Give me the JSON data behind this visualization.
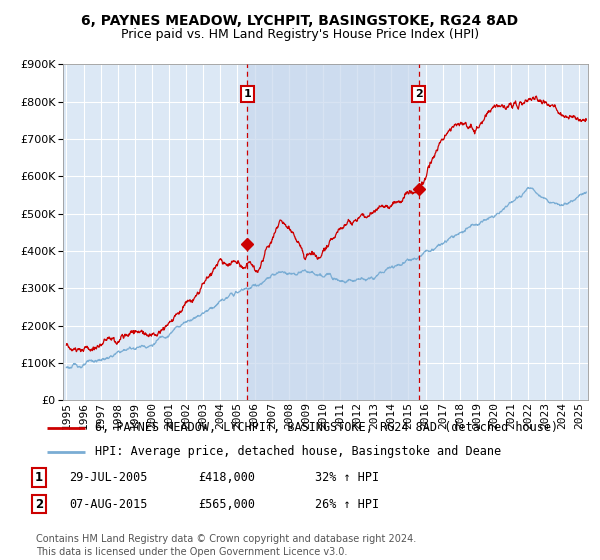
{
  "title": "6, PAYNES MEADOW, LYCHPIT, BASINGSTOKE, RG24 8AD",
  "subtitle": "Price paid vs. HM Land Registry's House Price Index (HPI)",
  "ylim": [
    0,
    900000
  ],
  "xlim_start": 1994.8,
  "xlim_end": 2025.5,
  "xtick_years": [
    1995,
    1996,
    1997,
    1998,
    1999,
    2000,
    2001,
    2002,
    2003,
    2004,
    2005,
    2006,
    2007,
    2008,
    2009,
    2010,
    2011,
    2012,
    2013,
    2014,
    2015,
    2016,
    2017,
    2018,
    2019,
    2020,
    2021,
    2022,
    2023,
    2024,
    2025
  ],
  "vline1_x": 2005.57,
  "vline2_x": 2015.6,
  "marker1_x": 2005.57,
  "marker1_y": 418000,
  "marker2_x": 2015.6,
  "marker2_y": 565000,
  "marker1_label": "1",
  "marker2_label": "2",
  "sale1_date": "29-JUL-2005",
  "sale1_price": "£418,000",
  "sale1_hpi": "32% ↑ HPI",
  "sale2_date": "07-AUG-2015",
  "sale2_price": "£565,000",
  "sale2_hpi": "26% ↑ HPI",
  "red_line_color": "#cc0000",
  "blue_line_color": "#7aadd4",
  "vline_color": "#cc0000",
  "marker_box_color": "#cc0000",
  "background_color": "#ffffff",
  "plot_bg_color": "#dce8f5",
  "shade_color": "#c8d8ed",
  "grid_color": "#ffffff",
  "legend_line1": "6, PAYNES MEADOW, LYCHPIT, BASINGSTOKE, RG24 8AD (detached house)",
  "legend_line2": "HPI: Average price, detached house, Basingstoke and Deane",
  "footer": "Contains HM Land Registry data © Crown copyright and database right 2024.\nThis data is licensed under the Open Government Licence v3.0.",
  "title_fontsize": 10,
  "subtitle_fontsize": 9,
  "tick_fontsize": 8,
  "legend_fontsize": 8.5,
  "footer_fontsize": 7
}
